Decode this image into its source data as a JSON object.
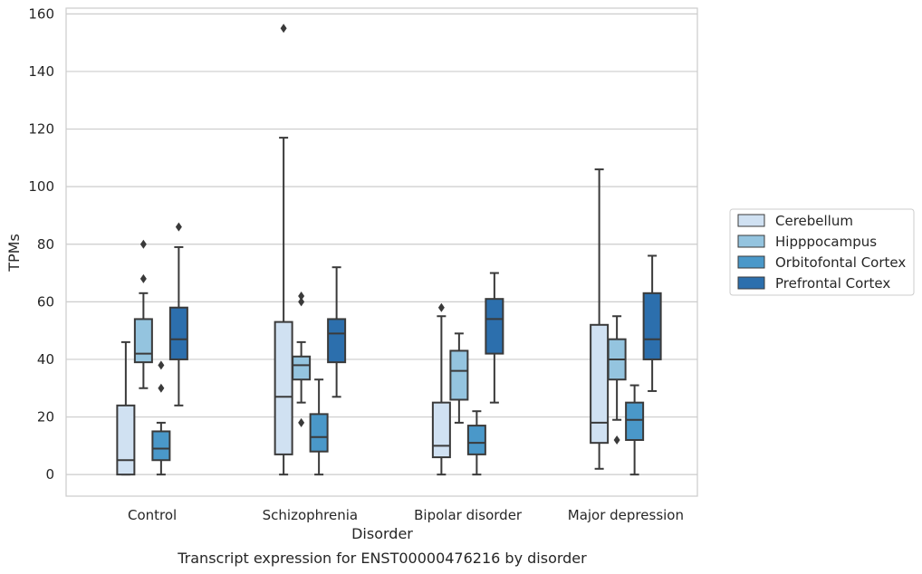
{
  "caption": "Transcript expression for ENST00000476216 by disorder",
  "chart_data": {
    "type": "box",
    "xlabel": "Disorder",
    "ylabel": "TPMs",
    "ylim": [
      -7.5,
      162
    ],
    "yticks": [
      0,
      20,
      40,
      60,
      80,
      100,
      120,
      140,
      160
    ],
    "grid": "horizontal",
    "legend_placement": "right",
    "categories": [
      "Control",
      "Schizophrenia",
      "Bipolar disorder",
      "Major depression"
    ],
    "series": [
      {
        "name": "Cerebellum",
        "color": "#d0e1f2",
        "boxes": [
          {
            "whisker_low": 0,
            "q1": 0,
            "median": 5,
            "q3": 24,
            "whisker_high": 46,
            "outliers": []
          },
          {
            "whisker_low": 0,
            "q1": 7,
            "median": 27,
            "q3": 53,
            "whisker_high": 117,
            "outliers": [
              155
            ]
          },
          {
            "whisker_low": 0,
            "q1": 6,
            "median": 10,
            "q3": 25,
            "whisker_high": 55,
            "outliers": [
              58
            ]
          },
          {
            "whisker_low": 2,
            "q1": 11,
            "median": 18,
            "q3": 52,
            "whisker_high": 106,
            "outliers": []
          }
        ]
      },
      {
        "name": "Hipppocampus",
        "color": "#94c4df",
        "boxes": [
          {
            "whisker_low": 30,
            "q1": 39,
            "median": 42,
            "q3": 54,
            "whisker_high": 63,
            "outliers": [
              68,
              80
            ]
          },
          {
            "whisker_low": 25,
            "q1": 33,
            "median": 38,
            "q3": 41,
            "whisker_high": 46,
            "outliers": [
              18,
              60,
              62
            ]
          },
          {
            "whisker_low": 18,
            "q1": 26,
            "median": 36,
            "q3": 43,
            "whisker_high": 49,
            "outliers": []
          },
          {
            "whisker_low": 19,
            "q1": 33,
            "median": 40,
            "q3": 47,
            "whisker_high": 55,
            "outliers": [
              12
            ]
          }
        ]
      },
      {
        "name": "Orbitofontal Cortex",
        "color": "#4a98c9",
        "boxes": [
          {
            "whisker_low": 0,
            "q1": 5,
            "median": 9,
            "q3": 15,
            "whisker_high": 18,
            "outliers": [
              30,
              38
            ]
          },
          {
            "whisker_low": 0,
            "q1": 8,
            "median": 13,
            "q3": 21,
            "whisker_high": 33,
            "outliers": []
          },
          {
            "whisker_low": 0,
            "q1": 7,
            "median": 11,
            "q3": 17,
            "whisker_high": 22,
            "outliers": []
          },
          {
            "whisker_low": 0,
            "q1": 12,
            "median": 19,
            "q3": 25,
            "whisker_high": 31,
            "outliers": []
          }
        ]
      },
      {
        "name": "Prefrontal Cortex",
        "color": "#2c6fad",
        "boxes": [
          {
            "whisker_low": 24,
            "q1": 40,
            "median": 47,
            "q3": 58,
            "whisker_high": 79,
            "outliers": [
              86
            ]
          },
          {
            "whisker_low": 27,
            "q1": 39,
            "median": 49,
            "q3": 54,
            "whisker_high": 72,
            "outliers": []
          },
          {
            "whisker_low": 25,
            "q1": 42,
            "median": 54,
            "q3": 61,
            "whisker_high": 70,
            "outliers": []
          },
          {
            "whisker_low": 29,
            "q1": 40,
            "median": 47,
            "q3": 63,
            "whisker_high": 76,
            "outliers": []
          }
        ]
      }
    ]
  }
}
